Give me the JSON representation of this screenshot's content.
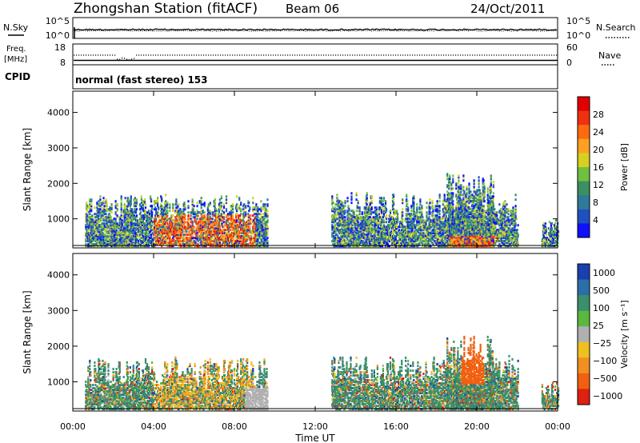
{
  "header": {
    "station": "Zhongshan Station (fitACF)",
    "beam": "Beam 06",
    "date": "24/Oct/2011",
    "cpid_label": "CPID",
    "mode": "normal (fast stereo) 153"
  },
  "strip_nsky": {
    "left_label": "N.Sky",
    "right_label": "N.Search",
    "left_ticks": [
      "10^5",
      "10^0"
    ],
    "right_ticks": [
      "10^5",
      "10^0"
    ]
  },
  "strip_freq": {
    "left_label_1": "Freq.",
    "left_label_2": "[MHz]",
    "right_label": "Nave",
    "left_ticks": [
      "18",
      "8"
    ],
    "right_ticks": [
      "60",
      "0"
    ]
  },
  "chart_data": [
    {
      "type": "heatmap",
      "name": "power-panel",
      "ylabel": "Slant Range [km]",
      "xlabel": "Time UT",
      "x_ticks": [
        "00:00",
        "04:00",
        "08:00",
        "12:00",
        "16:00",
        "20:00",
        "00:00"
      ],
      "x_range_hours": [
        0,
        24
      ],
      "y_ticks": [
        1000,
        2000,
        3000,
        4000
      ],
      "y_range_km": [
        180,
        4600
      ],
      "colorbar": {
        "label": "Power [dB]",
        "ticks": [
          "4",
          "8",
          "12",
          "16",
          "20",
          "24",
          "28"
        ],
        "colors": [
          "#1010ff",
          "#2050c0",
          "#2f7a9a",
          "#3a9060",
          "#70c040",
          "#d8d020",
          "#ffa020",
          "#ff6a10",
          "#f03010",
          "#e00000"
        ]
      },
      "echo_regions": [
        {
          "t0": 0.6,
          "t1": 9.6,
          "r0": 200,
          "r1": 1650
        },
        {
          "t0": 12.8,
          "t1": 22.0,
          "r0": 200,
          "r1": 1700
        },
        {
          "t0": 18.5,
          "t1": 20.8,
          "r0": 200,
          "r1": 2300
        },
        {
          "t0": 23.2,
          "t1": 24.0,
          "r0": 200,
          "r1": 1000
        }
      ]
    },
    {
      "type": "heatmap",
      "name": "velocity-panel",
      "ylabel": "Slant Range [km]",
      "xlabel": "Time UT",
      "x_ticks": [
        "00:00",
        "04:00",
        "08:00",
        "12:00",
        "16:00",
        "20:00",
        "00:00"
      ],
      "x_range_hours": [
        0,
        24
      ],
      "y_ticks": [
        1000,
        2000,
        3000,
        4000
      ],
      "y_range_km": [
        180,
        4600
      ],
      "colorbar": {
        "label": "Velocity [m s⁻¹]",
        "ticks": [
          "1000",
          "500",
          "100",
          "25",
          "−25",
          "−100",
          "−500",
          "−1000"
        ],
        "colors": [
          "#1a40b0",
          "#2c6ea8",
          "#3b8f6a",
          "#5ab840",
          "#b0b0b0",
          "#f0c020",
          "#f09020",
          "#f06010",
          "#e02010"
        ]
      },
      "echo_regions": [
        {
          "t0": 0.6,
          "t1": 9.6,
          "r0": 200,
          "r1": 1650
        },
        {
          "t0": 12.8,
          "t1": 22.0,
          "r0": 200,
          "r1": 1700
        },
        {
          "t0": 18.5,
          "t1": 20.8,
          "r0": 200,
          "r1": 2300
        },
        {
          "t0": 23.2,
          "t1": 24.0,
          "r0": 200,
          "r1": 1000
        }
      ]
    }
  ]
}
